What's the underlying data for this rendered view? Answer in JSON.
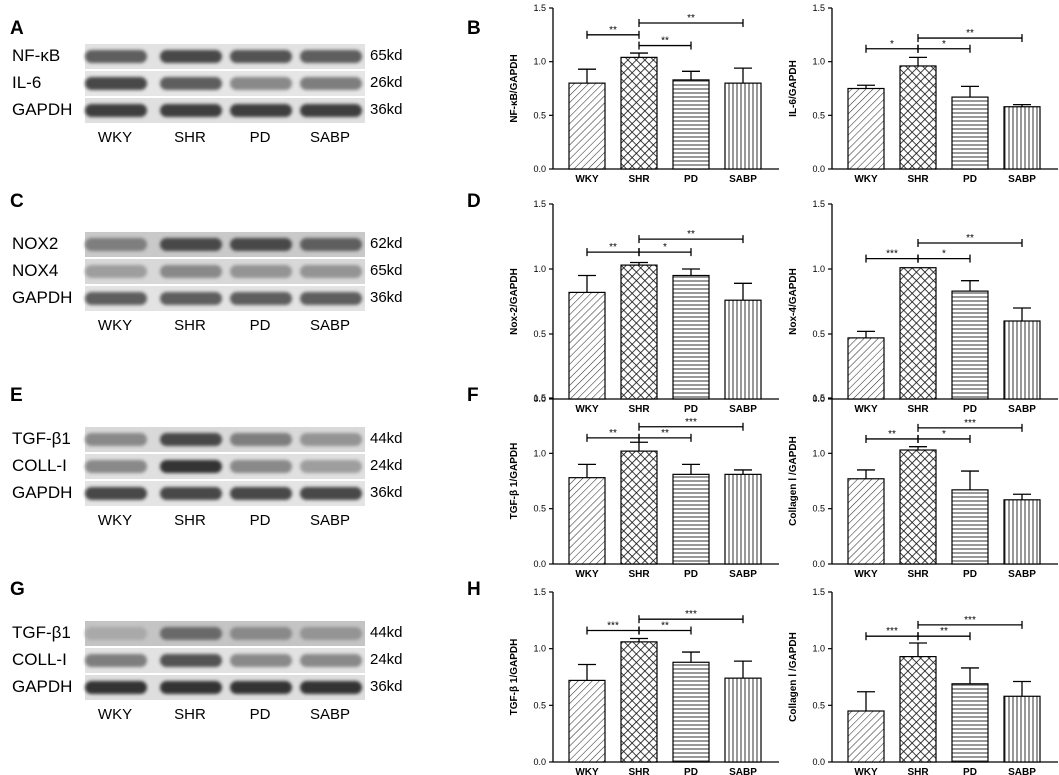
{
  "panel_letters": [
    "A",
    "B",
    "C",
    "D",
    "E",
    "F",
    "G",
    "H"
  ],
  "blots": [
    {
      "letter": "A",
      "rows": [
        {
          "protein": "NF-κB",
          "kd": "65kd",
          "int": [
            0.75,
            0.85,
            0.8,
            0.75
          ],
          "bg": "#e2e2e2"
        },
        {
          "protein": "IL-6",
          "kd": "26kd",
          "int": [
            0.85,
            0.75,
            0.55,
            0.6
          ],
          "bg": "#e6e6e6"
        },
        {
          "protein": "GAPDH",
          "kd": "36kd",
          "int": [
            0.9,
            0.9,
            0.9,
            0.9
          ],
          "bg": "#e0e0e0"
        }
      ],
      "groups": [
        "WKY",
        "SHR",
        "PD",
        "SABP"
      ]
    },
    {
      "letter": "C",
      "rows": [
        {
          "protein": "NOX2",
          "kd": "62kd",
          "int": [
            0.6,
            0.85,
            0.85,
            0.75
          ],
          "bg": "#c9c9c9"
        },
        {
          "protein": "NOX4",
          "kd": "65kd",
          "int": [
            0.45,
            0.55,
            0.5,
            0.5
          ],
          "bg": "#d8d8d8"
        },
        {
          "protein": "GAPDH",
          "kd": "36kd",
          "int": [
            0.75,
            0.75,
            0.75,
            0.75
          ],
          "bg": "#e3e3e3"
        }
      ],
      "groups": [
        "WKY",
        "SHR",
        "PD",
        "SABP"
      ]
    },
    {
      "letter": "E",
      "rows": [
        {
          "protein": "TGF-β1",
          "kd": "44kd",
          "int": [
            0.55,
            0.85,
            0.6,
            0.5
          ],
          "bg": "#d9d9d9"
        },
        {
          "protein": "COLL-I",
          "kd": "24kd",
          "int": [
            0.55,
            0.95,
            0.55,
            0.45
          ],
          "bg": "#e0e0e0"
        },
        {
          "protein": "GAPDH",
          "kd": "36kd",
          "int": [
            0.85,
            0.85,
            0.85,
            0.85
          ],
          "bg": "#e4e4e4"
        }
      ],
      "groups": [
        "WKY",
        "SHR",
        "PD",
        "SABP"
      ]
    },
    {
      "letter": "G",
      "rows": [
        {
          "protein": "TGF-β1",
          "kd": "44kd",
          "int": [
            0.4,
            0.7,
            0.55,
            0.5
          ],
          "bg": "#c4c4c4"
        },
        {
          "protein": "COLL-I",
          "kd": "24kd",
          "int": [
            0.6,
            0.8,
            0.55,
            0.55
          ],
          "bg": "#e2e2e2"
        },
        {
          "protein": "GAPDH",
          "kd": "36kd",
          "int": [
            0.95,
            0.95,
            0.95,
            0.95
          ],
          "bg": "#dedede"
        }
      ],
      "groups": [
        "WKY",
        "SHR",
        "PD",
        "SABP"
      ]
    }
  ],
  "chart_data": [
    {
      "type": "bar",
      "panel": "B",
      "ylabel": "NF-κB/GAPDH",
      "categories": [
        "WKY",
        "SHR",
        "PD",
        "SABP"
      ],
      "values": [
        0.8,
        1.04,
        0.83,
        0.8
      ],
      "errors": [
        0.13,
        0.04,
        0.08,
        0.14
      ],
      "ylim": [
        0,
        1.5
      ],
      "yticks": [
        "0.0",
        "0.5",
        "1.0",
        "1.5"
      ],
      "sig": [
        {
          "from": 0,
          "to": 1,
          "label": "**",
          "level": 1.25
        },
        {
          "from": 1,
          "to": 2,
          "label": "**",
          "level": 1.15
        },
        {
          "from": 1,
          "to": 3,
          "label": "**",
          "level": 1.36
        }
      ]
    },
    {
      "type": "bar",
      "panel": "B2",
      "ylabel": "IL-6/GAPDH",
      "categories": [
        "WKY",
        "SHR",
        "PD",
        "SABP"
      ],
      "values": [
        0.75,
        0.96,
        0.67,
        0.58
      ],
      "errors": [
        0.03,
        0.08,
        0.1,
        0.02
      ],
      "ylim": [
        0,
        1.5
      ],
      "yticks": [
        "0.0",
        "0.5",
        "1.0",
        "1.5"
      ],
      "sig": [
        {
          "from": 0,
          "to": 1,
          "label": "*",
          "level": 1.12
        },
        {
          "from": 1,
          "to": 2,
          "label": "*",
          "level": 1.12
        },
        {
          "from": 1,
          "to": 3,
          "label": "**",
          "level": 1.22
        }
      ]
    },
    {
      "type": "bar",
      "panel": "D",
      "ylabel": "Nox-2/GAPDH",
      "categories": [
        "WKY",
        "SHR",
        "PD",
        "SABP"
      ],
      "values": [
        0.82,
        1.03,
        0.95,
        0.76
      ],
      "errors": [
        0.13,
        0.02,
        0.05,
        0.13
      ],
      "ylim": [
        0,
        1.5
      ],
      "yticks": [
        "0.0",
        "0.5",
        "1.0",
        "1.5"
      ],
      "sig": [
        {
          "from": 0,
          "to": 1,
          "label": "**",
          "level": 1.13
        },
        {
          "from": 1,
          "to": 2,
          "label": "*",
          "level": 1.13
        },
        {
          "from": 1,
          "to": 3,
          "label": "**",
          "level": 1.23
        }
      ]
    },
    {
      "type": "bar",
      "panel": "D2",
      "ylabel": "Nox-4/GAPDH",
      "categories": [
        "WKY",
        "SHR",
        "PD",
        "SABP"
      ],
      "values": [
        0.47,
        1.01,
        0.83,
        0.6
      ],
      "errors": [
        0.05,
        0.0,
        0.08,
        0.1
      ],
      "ylim": [
        0,
        1.5
      ],
      "yticks": [
        "0.0",
        "0.5",
        "1.0",
        "1.5"
      ],
      "sig": [
        {
          "from": 0,
          "to": 1,
          "label": "***",
          "level": 1.08
        },
        {
          "from": 1,
          "to": 2,
          "label": "*",
          "level": 1.08
        },
        {
          "from": 1,
          "to": 3,
          "label": "**",
          "level": 1.2
        }
      ]
    },
    {
      "type": "bar",
      "panel": "F",
      "ylabel": "TGF-β 1/GAPDH",
      "categories": [
        "WKY",
        "SHR",
        "PD",
        "SABP"
      ],
      "values": [
        0.78,
        1.02,
        0.81,
        0.81
      ],
      "errors": [
        0.12,
        0.08,
        0.09,
        0.04
      ],
      "ylim": [
        0,
        1.5
      ],
      "yticks": [
        "0.0",
        "0.5",
        "1.0",
        "1.5"
      ],
      "sig": [
        {
          "from": 0,
          "to": 1,
          "label": "**",
          "level": 1.14
        },
        {
          "from": 1,
          "to": 2,
          "label": "**",
          "level": 1.14
        },
        {
          "from": 1,
          "to": 3,
          "label": "***",
          "level": 1.24
        }
      ]
    },
    {
      "type": "bar",
      "panel": "F2",
      "ylabel": "Collagen Ⅰ /GAPDH",
      "categories": [
        "WKY",
        "SHR",
        "PD",
        "SABP"
      ],
      "values": [
        0.77,
        1.03,
        0.67,
        0.58
      ],
      "errors": [
        0.08,
        0.03,
        0.17,
        0.05
      ],
      "ylim": [
        0,
        1.5
      ],
      "yticks": [
        "0.0",
        "0.5",
        "1.0",
        "1.5"
      ],
      "sig": [
        {
          "from": 0,
          "to": 1,
          "label": "**",
          "level": 1.13
        },
        {
          "from": 1,
          "to": 2,
          "label": "*",
          "level": 1.13
        },
        {
          "from": 1,
          "to": 3,
          "label": "***",
          "level": 1.23
        }
      ]
    },
    {
      "type": "bar",
      "panel": "H",
      "ylabel": "TGF-β 1/GAPDH",
      "categories": [
        "WKY",
        "SHR",
        "PD",
        "SABP"
      ],
      "values": [
        0.72,
        1.06,
        0.88,
        0.74
      ],
      "errors": [
        0.14,
        0.03,
        0.09,
        0.15
      ],
      "ylim": [
        0,
        1.5
      ],
      "yticks": [
        "0.0",
        "0.5",
        "1.0",
        "1.5"
      ],
      "sig": [
        {
          "from": 0,
          "to": 1,
          "label": "***",
          "level": 1.16
        },
        {
          "from": 1,
          "to": 2,
          "label": "**",
          "level": 1.16
        },
        {
          "from": 1,
          "to": 3,
          "label": "***",
          "level": 1.26
        }
      ]
    },
    {
      "type": "bar",
      "panel": "H2",
      "ylabel": "Collagen Ⅰ /GAPDH",
      "categories": [
        "WKY",
        "SHR",
        "PD",
        "SABP"
      ],
      "values": [
        0.45,
        0.93,
        0.69,
        0.58
      ],
      "errors": [
        0.17,
        0.12,
        0.14,
        0.13
      ],
      "ylim": [
        0,
        1.5
      ],
      "yticks": [
        "0.0",
        "0.5",
        "1.0",
        "1.5"
      ],
      "sig": [
        {
          "from": 0,
          "to": 1,
          "label": "***",
          "level": 1.11
        },
        {
          "from": 1,
          "to": 2,
          "label": "**",
          "level": 1.11
        },
        {
          "from": 1,
          "to": 3,
          "label": "***",
          "level": 1.21
        }
      ]
    }
  ]
}
